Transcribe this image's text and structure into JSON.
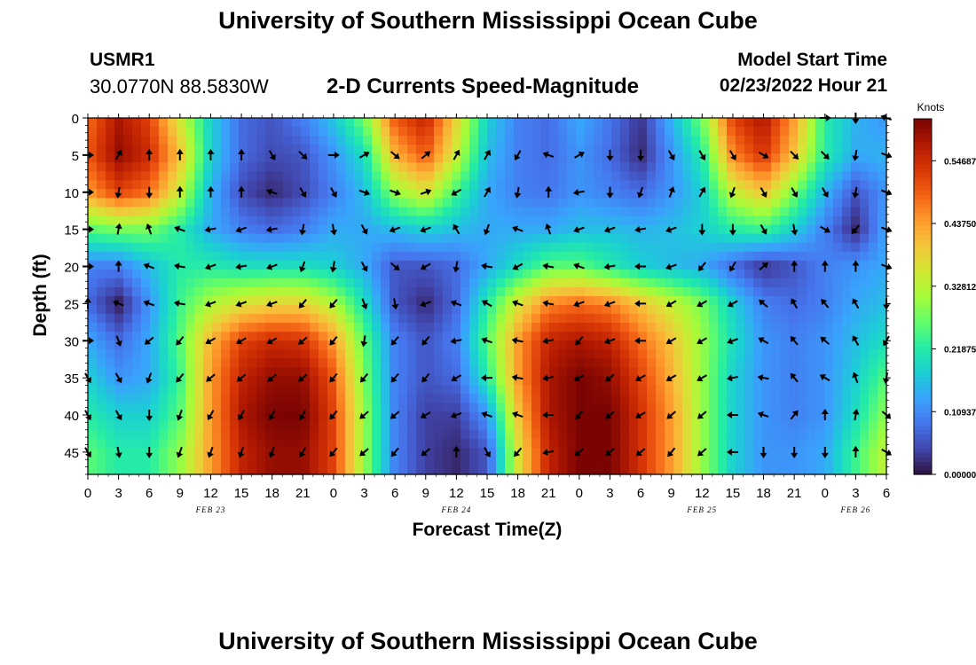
{
  "header": {
    "title": "University of Southern Mississippi Ocean Cube",
    "station": "USMR1",
    "coordinates": "30.0770N  88.5830W",
    "product": "2-D Currents Speed-Magnitude",
    "model_start_label": "Model Start Time",
    "model_start_value": "02/23/2022 Hour 21"
  },
  "footer": {
    "title": "University of Southern Mississippi Ocean Cube"
  },
  "chart_data": {
    "type": "heatmap",
    "xlabel": "Forecast Time(Z)",
    "ylabel": "Depth (ft)",
    "x_tick_labels": [
      "0",
      "3",
      "6",
      "9",
      "12",
      "15",
      "18",
      "21",
      "0",
      "3",
      "6",
      "9",
      "12",
      "15",
      "18",
      "21",
      "0",
      "3",
      "6",
      "9",
      "12",
      "15",
      "18",
      "21",
      "0",
      "3",
      "6"
    ],
    "date_labels": [
      {
        "label": "FEB 23",
        "tick_index": 4
      },
      {
        "label": "FEB 24",
        "tick_index": 12
      },
      {
        "label": "FEB 25",
        "tick_index": 20
      },
      {
        "label": "FEB 26",
        "tick_index": 25
      }
    ],
    "y_ticks": [
      0,
      5,
      10,
      15,
      20,
      25,
      30,
      35,
      40,
      45
    ],
    "ylim": [
      0,
      48
    ],
    "y_inverted": true,
    "colorbar": {
      "title": "Knots",
      "labels": [
        "0.000000",
        "0.109375",
        "0.218750",
        "0.328125",
        "0.437500",
        "0.546875"
      ],
      "min": 0,
      "max": 0.62,
      "colors": [
        "#30123b",
        "#4145ab",
        "#4675ed",
        "#39a2fc",
        "#1bcfd4",
        "#24eca6",
        "#61fc6c",
        "#a4fc3b",
        "#d1e834",
        "#f3c63a",
        "#fe9b2d",
        "#f36315",
        "#d93806",
        "#b11901",
        "#7a0402"
      ]
    },
    "grid_x_hours": [
      0,
      3,
      6,
      9,
      12,
      15,
      18,
      21,
      24,
      27,
      30,
      33,
      36,
      39,
      42,
      45,
      48,
      51,
      54,
      57,
      60,
      63,
      66,
      69,
      72,
      75,
      78
    ],
    "grid_depths_ft": [
      0,
      5,
      10,
      15,
      20,
      25,
      30,
      35,
      40,
      45
    ],
    "speed_knots": [
      [
        0.48,
        0.58,
        0.52,
        0.35,
        0.18,
        0.08,
        0.06,
        0.1,
        0.17,
        0.28,
        0.5,
        0.56,
        0.38,
        0.18,
        0.1,
        0.08,
        0.14,
        0.09,
        0.03,
        0.15,
        0.28,
        0.52,
        0.58,
        0.44,
        0.22,
        0.15,
        0.12
      ],
      [
        0.5,
        0.6,
        0.55,
        0.4,
        0.18,
        0.08,
        0.05,
        0.06,
        0.12,
        0.2,
        0.42,
        0.5,
        0.34,
        0.16,
        0.1,
        0.08,
        0.12,
        0.08,
        0.02,
        0.12,
        0.22,
        0.46,
        0.54,
        0.4,
        0.22,
        0.14,
        0.15
      ],
      [
        0.44,
        0.52,
        0.48,
        0.34,
        0.15,
        0.05,
        0.02,
        0.05,
        0.1,
        0.16,
        0.3,
        0.36,
        0.24,
        0.14,
        0.1,
        0.09,
        0.12,
        0.1,
        0.08,
        0.12,
        0.18,
        0.34,
        0.4,
        0.28,
        0.15,
        0.06,
        0.12
      ],
      [
        0.26,
        0.28,
        0.28,
        0.22,
        0.14,
        0.1,
        0.08,
        0.1,
        0.14,
        0.14,
        0.16,
        0.18,
        0.16,
        0.14,
        0.14,
        0.14,
        0.16,
        0.16,
        0.15,
        0.16,
        0.18,
        0.22,
        0.24,
        0.18,
        0.1,
        0.02,
        0.14
      ],
      [
        0.1,
        0.1,
        0.16,
        0.22,
        0.22,
        0.2,
        0.2,
        0.2,
        0.18,
        0.14,
        0.06,
        0.06,
        0.08,
        0.14,
        0.2,
        0.26,
        0.26,
        0.22,
        0.18,
        0.16,
        0.14,
        0.08,
        0.03,
        0.06,
        0.1,
        0.12,
        0.14
      ],
      [
        0.08,
        0.01,
        0.12,
        0.24,
        0.32,
        0.36,
        0.38,
        0.38,
        0.32,
        0.2,
        0.06,
        0.02,
        0.08,
        0.22,
        0.36,
        0.46,
        0.48,
        0.46,
        0.4,
        0.34,
        0.28,
        0.18,
        0.1,
        0.08,
        0.1,
        0.14,
        0.16
      ],
      [
        0.14,
        0.08,
        0.14,
        0.26,
        0.42,
        0.52,
        0.55,
        0.54,
        0.44,
        0.26,
        0.1,
        0.06,
        0.1,
        0.26,
        0.44,
        0.56,
        0.58,
        0.56,
        0.48,
        0.4,
        0.3,
        0.2,
        0.12,
        0.1,
        0.12,
        0.16,
        0.2
      ],
      [
        0.18,
        0.12,
        0.14,
        0.24,
        0.44,
        0.56,
        0.6,
        0.6,
        0.5,
        0.28,
        0.1,
        0.06,
        0.08,
        0.22,
        0.44,
        0.58,
        0.62,
        0.6,
        0.52,
        0.42,
        0.3,
        0.18,
        0.12,
        0.1,
        0.12,
        0.18,
        0.26
      ],
      [
        0.22,
        0.18,
        0.18,
        0.26,
        0.44,
        0.58,
        0.62,
        0.62,
        0.52,
        0.3,
        0.1,
        0.04,
        0.04,
        0.12,
        0.4,
        0.58,
        0.62,
        0.62,
        0.54,
        0.44,
        0.3,
        0.18,
        0.12,
        0.1,
        0.12,
        0.2,
        0.3
      ],
      [
        0.26,
        0.22,
        0.22,
        0.3,
        0.44,
        0.56,
        0.6,
        0.6,
        0.52,
        0.3,
        0.1,
        0.04,
        0.02,
        0.06,
        0.36,
        0.56,
        0.62,
        0.62,
        0.54,
        0.44,
        0.3,
        0.18,
        0.12,
        0.12,
        0.14,
        0.24,
        0.34
      ]
    ],
    "direction_deg": [
      [
        0,
        0,
        0,
        0,
        0,
        0,
        0,
        0,
        0,
        0,
        0,
        0,
        0,
        0,
        0,
        0,
        0,
        0,
        0,
        0,
        0,
        0,
        0,
        0,
        0,
        90,
        200
      ],
      [
        0,
        300,
        270,
        270,
        270,
        270,
        60,
        45,
        0,
        330,
        40,
        320,
        300,
        300,
        120,
        200,
        330,
        90,
        90,
        60,
        60,
        60,
        30,
        45,
        45,
        100,
        20
      ],
      [
        0,
        100,
        90,
        270,
        270,
        270,
        200,
        60,
        60,
        20,
        20,
        340,
        150,
        300,
        100,
        270,
        170,
        90,
        110,
        290,
        300,
        110,
        60,
        60,
        60,
        100,
        20
      ],
      [
        0,
        280,
        250,
        200,
        170,
        160,
        170,
        100,
        80,
        60,
        160,
        160,
        240,
        110,
        200,
        250,
        160,
        160,
        170,
        160,
        90,
        90,
        60,
        80,
        30,
        130,
        20
      ],
      [
        0,
        270,
        200,
        190,
        160,
        170,
        160,
        110,
        100,
        60,
        40,
        150,
        100,
        190,
        150,
        190,
        200,
        170,
        180,
        160,
        130,
        120,
        320,
        270,
        270,
        270,
        20
      ],
      [
        270,
        200,
        200,
        190,
        160,
        160,
        160,
        130,
        130,
        70,
        80,
        160,
        200,
        210,
        200,
        190,
        160,
        160,
        180,
        150,
        150,
        150,
        220,
        240,
        230,
        240,
        90
      ],
      [
        0,
        70,
        140,
        130,
        150,
        150,
        150,
        140,
        130,
        100,
        130,
        130,
        170,
        200,
        190,
        170,
        130,
        160,
        180,
        150,
        150,
        160,
        210,
        230,
        220,
        240,
        120
      ],
      [
        60,
        60,
        110,
        130,
        140,
        140,
        140,
        140,
        130,
        130,
        130,
        130,
        150,
        180,
        190,
        170,
        150,
        140,
        150,
        150,
        150,
        170,
        190,
        230,
        210,
        250,
        100
      ],
      [
        60,
        60,
        90,
        110,
        120,
        120,
        120,
        120,
        130,
        140,
        140,
        150,
        160,
        200,
        200,
        180,
        130,
        140,
        150,
        140,
        140,
        180,
        200,
        310,
        270,
        280,
        40
      ],
      [
        60,
        80,
        90,
        110,
        110,
        110,
        110,
        120,
        130,
        140,
        130,
        140,
        270,
        60,
        130,
        170,
        140,
        140,
        140,
        130,
        140,
        180,
        90,
        90,
        90,
        270,
        30
      ]
    ]
  }
}
